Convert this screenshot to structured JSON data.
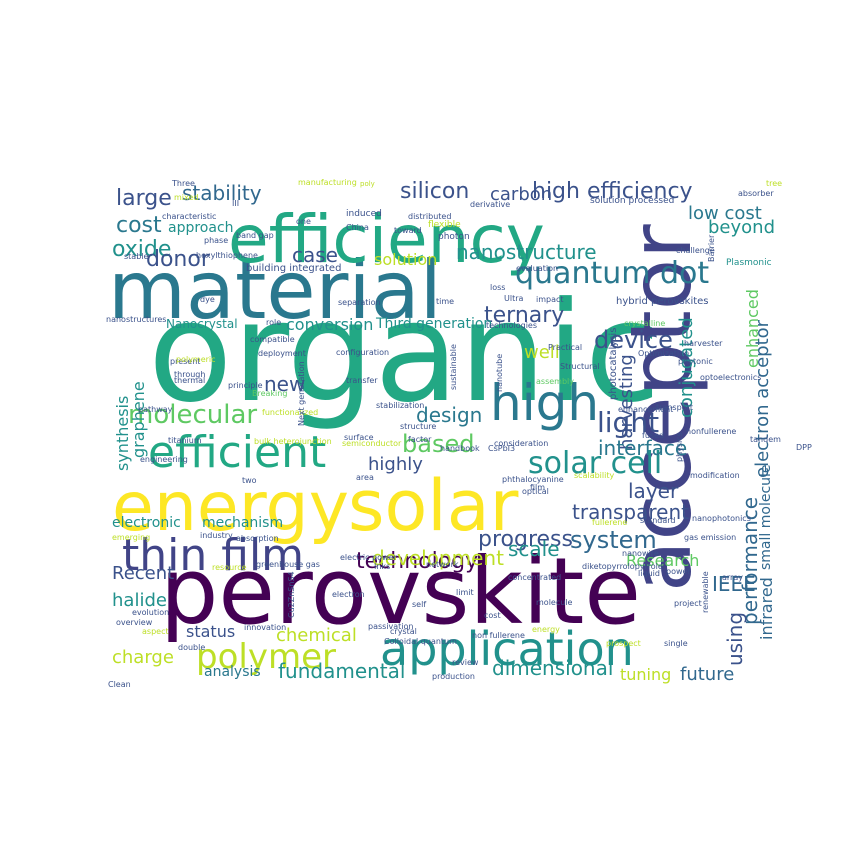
{
  "words": [
    {
      "text": "organic",
      "color": "#22A884"
    },
    {
      "text": "perovskite",
      "color": "#440154"
    },
    {
      "text": "acceptor",
      "color": "#414487"
    },
    {
      "text": "material",
      "color": "#2A788E"
    },
    {
      "text": "efficiency",
      "color": "#22A884"
    },
    {
      "text": "energy",
      "color": "#FDE725"
    },
    {
      "text": "solar",
      "color": "#FDE725"
    },
    {
      "text": "application",
      "color": "#21918C"
    },
    {
      "text": "thin film",
      "color": "#414487"
    },
    {
      "text": "high",
      "color": "#2A788E"
    },
    {
      "text": "efficient",
      "color": "#22A884"
    },
    {
      "text": "quantum dot",
      "color": "#2A788E"
    },
    {
      "text": "polymer",
      "color": "#BDDF26"
    },
    {
      "text": "solar cell",
      "color": "#21918C"
    },
    {
      "text": "molecular",
      "color": "#5EC962"
    },
    {
      "text": "high efficiency",
      "color": "#3B528B"
    },
    {
      "text": "system",
      "color": "#31688E"
    },
    {
      "text": "technology",
      "color": "#440154"
    },
    {
      "text": "progress",
      "color": "#3B528B"
    },
    {
      "text": "development",
      "color": "#BDDF26"
    },
    {
      "text": "nanostructure",
      "color": "#21918C"
    },
    {
      "text": "silicon",
      "color": "#3B528B"
    },
    {
      "text": "stability",
      "color": "#31688E"
    },
    {
      "text": "large",
      "color": "#3B528B"
    },
    {
      "text": "cost",
      "color": "#2A788E"
    },
    {
      "text": "oxide",
      "color": "#21918C"
    },
    {
      "text": "donor",
      "color": "#3B528B"
    },
    {
      "text": "carbon",
      "color": "#3B528B"
    },
    {
      "text": "light",
      "color": "#3B528B"
    },
    {
      "text": "device",
      "color": "#3B528B"
    },
    {
      "text": "ternary",
      "color": "#3B528B"
    },
    {
      "text": "based",
      "color": "#5EC962"
    },
    {
      "text": "low cost",
      "color": "#2A788E"
    },
    {
      "text": "beyond",
      "color": "#21918C"
    },
    {
      "text": "electron acceptor",
      "color": "#31688E"
    },
    {
      "text": "performance",
      "color": "#31688E"
    },
    {
      "text": "using",
      "color": "#3B528B"
    },
    {
      "text": "infrared",
      "color": "#31688E"
    },
    {
      "text": "conjugated",
      "color": "#21918C"
    },
    {
      "text": "harvesting",
      "color": "#3B528B"
    },
    {
      "text": "enhanced",
      "color": "#5EC962"
    },
    {
      "text": "small molecule",
      "color": "#31688E"
    },
    {
      "text": "IEEE",
      "color": "#31688E"
    },
    {
      "text": "future",
      "color": "#31688E"
    },
    {
      "text": "tuning",
      "color": "#BDDF26"
    },
    {
      "text": "dimensional",
      "color": "#21918C"
    },
    {
      "text": "fundamental",
      "color": "#21918C"
    },
    {
      "text": "analysis",
      "color": "#2A788E"
    },
    {
      "text": "chemical",
      "color": "#BDDF26"
    },
    {
      "text": "status",
      "color": "#3B528B"
    },
    {
      "text": "charge",
      "color": "#BDDF26"
    },
    {
      "text": "halide",
      "color": "#21918C"
    },
    {
      "text": "Recent",
      "color": "#3B528B"
    },
    {
      "text": "synthesis",
      "color": "#21918C"
    },
    {
      "text": "graphene",
      "color": "#21918C"
    },
    {
      "text": "new",
      "color": "#3B528B"
    },
    {
      "text": "design",
      "color": "#2A788E"
    },
    {
      "text": "highly",
      "color": "#3B528B"
    },
    {
      "text": "layer",
      "color": "#3B528B"
    },
    {
      "text": "transparent",
      "color": "#3B528B"
    },
    {
      "text": "interface",
      "color": "#2A788E"
    },
    {
      "text": "scale",
      "color": "#21918C"
    },
    {
      "text": "Research",
      "color": "#5EC962"
    },
    {
      "text": "conversion",
      "color": "#21918C"
    },
    {
      "text": "solution",
      "color": "#BDDF26"
    },
    {
      "text": "case",
      "color": "#3B528B"
    },
    {
      "text": "approach",
      "color": "#21918C"
    },
    {
      "text": "well",
      "color": "#BDDF26"
    },
    {
      "text": "Third generation",
      "color": "#21918C"
    },
    {
      "text": "Nanocrystal",
      "color": "#21918C"
    },
    {
      "text": "electronic",
      "color": "#21918C"
    },
    {
      "text": "mechanism",
      "color": "#21918C"
    },
    {
      "text": "photocatalysis",
      "color": "#3B528B"
    },
    {
      "text": "building integrated",
      "color": "#3B528B"
    },
    {
      "text": "hybrid perovskites",
      "color": "#3B528B"
    },
    {
      "text": "Plasmonic",
      "color": "#21918C"
    },
    {
      "text": "band gap",
      "color": "#3B528B"
    },
    {
      "text": "phase",
      "color": "#3B528B"
    },
    {
      "text": "characteristic",
      "color": "#3B528B"
    },
    {
      "text": "hexylthiophene",
      "color": "#3B528B"
    },
    {
      "text": "stable",
      "color": "#3B528B"
    },
    {
      "text": "one",
      "color": "#3B528B"
    },
    {
      "text": "China",
      "color": "#3B528B"
    },
    {
      "text": "toward",
      "color": "#3B528B"
    },
    {
      "text": "flexible",
      "color": "#BDDF26"
    },
    {
      "text": "photon",
      "color": "#3B528B"
    },
    {
      "text": "distributed",
      "color": "#3B528B"
    },
    {
      "text": "induced",
      "color": "#3B528B"
    },
    {
      "text": "derivative",
      "color": "#3B528B"
    },
    {
      "text": "solution processed",
      "color": "#3B528B"
    },
    {
      "text": "challenge",
      "color": "#3B528B"
    },
    {
      "text": "absorber",
      "color": "#3B528B"
    },
    {
      "text": "tree",
      "color": "#BDDF26"
    },
    {
      "text": "poly",
      "color": "#BDDF26"
    },
    {
      "text": "manufacturing",
      "color": "#BDDF26"
    },
    {
      "text": "Three",
      "color": "#3B528B"
    },
    {
      "text": "mixed",
      "color": "#BDDF26"
    },
    {
      "text": "III",
      "color": "#3B528B"
    },
    {
      "text": "role",
      "color": "#3B528B"
    },
    {
      "text": "time",
      "color": "#3B528B"
    },
    {
      "text": "loss",
      "color": "#3B528B"
    },
    {
      "text": "impact",
      "color": "#3B528B"
    },
    {
      "text": "Ultra",
      "color": "#3B528B"
    },
    {
      "text": "evaluation",
      "color": "#3B528B"
    },
    {
      "text": "technologies",
      "color": "#3B528B"
    },
    {
      "text": "crystalline",
      "color": "#5EC962"
    },
    {
      "text": "separation",
      "color": "#3B528B"
    },
    {
      "text": "dye",
      "color": "#3B528B"
    },
    {
      "text": "nanostructures",
      "color": "#3B528B"
    },
    {
      "text": "configuration",
      "color": "#3B528B"
    },
    {
      "text": "deployment",
      "color": "#3B528B"
    },
    {
      "text": "compatible",
      "color": "#3B528B"
    },
    {
      "text": "present",
      "color": "#3B528B"
    },
    {
      "text": "principle",
      "color": "#3B528B"
    },
    {
      "text": "Breaking",
      "color": "#5EC962"
    },
    {
      "text": "through",
      "color": "#3B528B"
    },
    {
      "text": "functionalized",
      "color": "#BDDF26"
    },
    {
      "text": "Next generation",
      "color": "#3B528B"
    },
    {
      "text": "transfer",
      "color": "#3B528B"
    },
    {
      "text": "stabilization",
      "color": "#3B528B"
    },
    {
      "text": "sustainable",
      "color": "#3B528B"
    },
    {
      "text": "nanotube",
      "color": "#3B528B"
    },
    {
      "text": "Practical",
      "color": "#3B528B"
    },
    {
      "text": "Structural",
      "color": "#3B528B"
    },
    {
      "text": "assembly",
      "color": "#5EC962"
    },
    {
      "text": "Optimization",
      "color": "#3B528B"
    },
    {
      "text": "photonic",
      "color": "#3B528B"
    },
    {
      "text": "optoelectronics",
      "color": "#3B528B"
    },
    {
      "text": "harvester",
      "color": "#3B528B"
    },
    {
      "text": "enhancement",
      "color": "#3B528B"
    },
    {
      "text": "transport",
      "color": "#3B528B"
    },
    {
      "text": "fused",
      "color": "#3B528B"
    },
    {
      "text": "nonfullerene",
      "color": "#3B528B"
    },
    {
      "text": "tandem",
      "color": "#3B528B"
    },
    {
      "text": "DPP",
      "color": "#3B528B"
    },
    {
      "text": "physics",
      "color": "#3B528B"
    },
    {
      "text": "modification",
      "color": "#3B528B"
    },
    {
      "text": "pathway",
      "color": "#3B528B"
    },
    {
      "text": "surface",
      "color": "#3B528B"
    },
    {
      "text": "structure",
      "color": "#3B528B"
    },
    {
      "text": "factor",
      "color": "#3B528B"
    },
    {
      "text": "consideration",
      "color": "#3B528B"
    },
    {
      "text": "engineering",
      "color": "#3B528B"
    },
    {
      "text": "titanium",
      "color": "#3B528B"
    },
    {
      "text": "bulk heterojunction",
      "color": "#BDDF26"
    },
    {
      "text": "semiconductor",
      "color": "#BDDF26"
    },
    {
      "text": "handbook",
      "color": "#3B528B"
    },
    {
      "text": "CsPbI3",
      "color": "#3B528B"
    },
    {
      "text": "scalability",
      "color": "#BDDF26"
    },
    {
      "text": "two",
      "color": "#3B528B"
    },
    {
      "text": "industry",
      "color": "#3B528B"
    },
    {
      "text": "phthalocyanine",
      "color": "#3B528B"
    },
    {
      "text": "fullerene",
      "color": "#BDDF26"
    },
    {
      "text": "standard",
      "color": "#3B528B"
    },
    {
      "text": "nanophotonics",
      "color": "#3B528B"
    },
    {
      "text": "absorption",
      "color": "#3B528B"
    },
    {
      "text": "resource",
      "color": "#BDDF26"
    },
    {
      "text": "greenhouse gas",
      "color": "#3B528B"
    },
    {
      "text": "electric power",
      "color": "#3B528B"
    },
    {
      "text": "Inks",
      "color": "#3B528B"
    },
    {
      "text": "network",
      "color": "#3B528B"
    },
    {
      "text": "concentrated",
      "color": "#3B528B"
    },
    {
      "text": "diketopyrrolopyrrole",
      "color": "#3B528B"
    },
    {
      "text": "nanowire",
      "color": "#3B528B"
    },
    {
      "text": "gas emission",
      "color": "#3B528B"
    },
    {
      "text": "array",
      "color": "#3B528B"
    },
    {
      "text": "liquid",
      "color": "#3B528B"
    },
    {
      "text": "power",
      "color": "#3B528B"
    },
    {
      "text": "renewable",
      "color": "#3B528B"
    },
    {
      "text": "project",
      "color": "#3B528B"
    },
    {
      "text": "evolution",
      "color": "#3B528B"
    },
    {
      "text": "overview",
      "color": "#3B528B"
    },
    {
      "text": "innovation",
      "color": "#3B528B"
    },
    {
      "text": "Cu2ZnSnS4",
      "color": "#3B528B"
    },
    {
      "text": "electron",
      "color": "#3B528B"
    },
    {
      "text": "limit",
      "color": "#3B528B"
    },
    {
      "text": "molecule",
      "color": "#3B528B"
    },
    {
      "text": "cost",
      "color": "#3B528B"
    },
    {
      "text": "crystal",
      "color": "#3B528B"
    },
    {
      "text": "passivation",
      "color": "#3B528B"
    },
    {
      "text": "non fullerene",
      "color": "#3B528B"
    },
    {
      "text": "review",
      "color": "#3B528B"
    },
    {
      "text": "production",
      "color": "#3B528B"
    },
    {
      "text": "prospect",
      "color": "#BDDF26"
    },
    {
      "text": "single",
      "color": "#3B528B"
    },
    {
      "text": "Clean",
      "color": "#3B528B"
    },
    {
      "text": "Colloidal quantum",
      "color": "#3B528B"
    },
    {
      "text": "double",
      "color": "#3B528B"
    },
    {
      "text": "polymeric",
      "color": "#BDDF26"
    },
    {
      "text": "thermal",
      "color": "#3B528B"
    },
    {
      "text": "Barrier",
      "color": "#3B528B"
    },
    {
      "text": "self",
      "color": "#3B528B"
    },
    {
      "text": "area",
      "color": "#3B528B"
    },
    {
      "text": "optical",
      "color": "#3B528B"
    },
    {
      "text": "aspect",
      "color": "#BDDF26"
    },
    {
      "text": "film",
      "color": "#3B528B"
    },
    {
      "text": "energy",
      "color": "#BDDF26"
    },
    {
      "text": "emerging",
      "color": "#BDDF26"
    },
    {
      "text": "Colloidal",
      "color": "#3B528B"
    },
    {
      "text": "advance",
      "color": "#3B528B"
    }
  ]
}
